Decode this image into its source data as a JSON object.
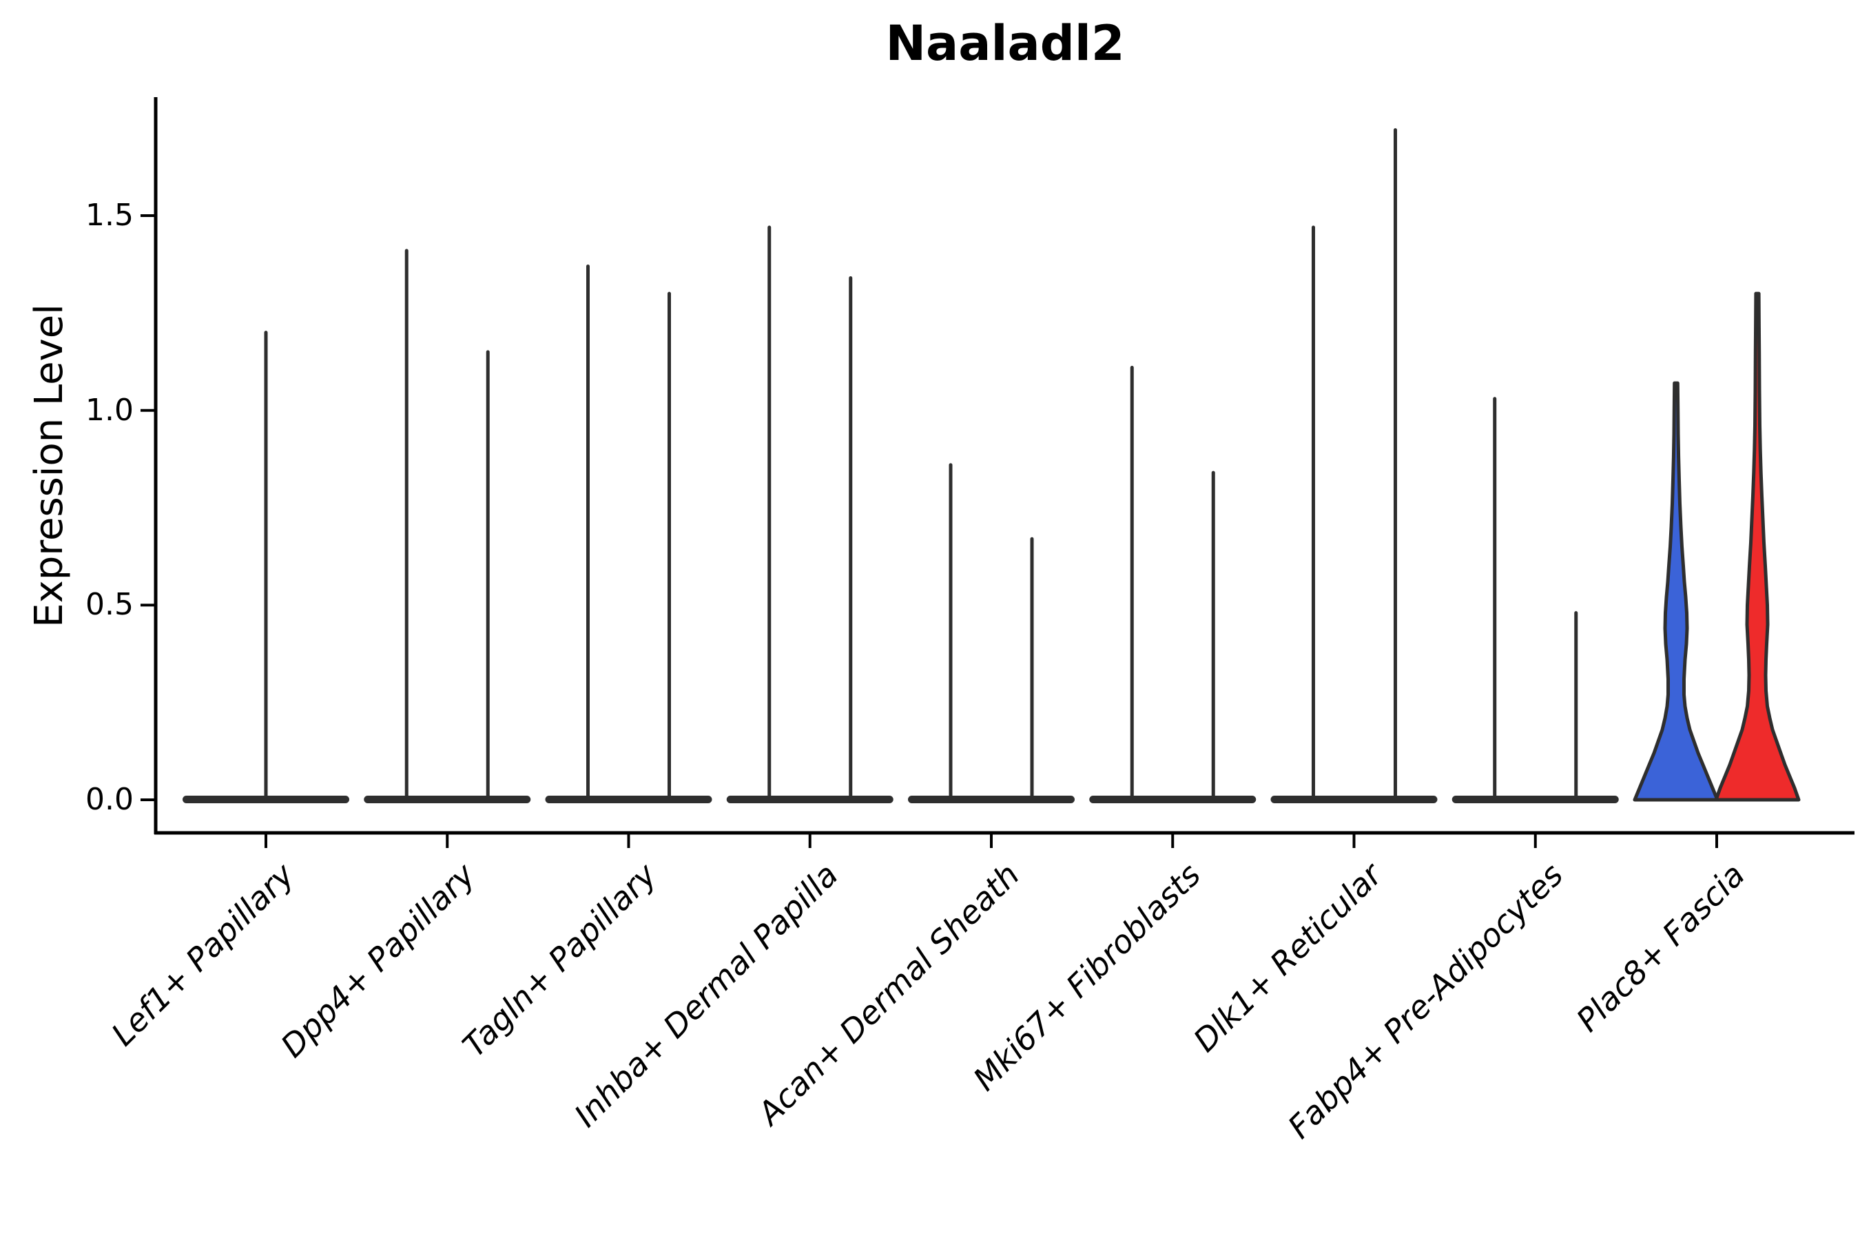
{
  "chart_data": {
    "type": "violin",
    "title": "Naaladl2",
    "xlabel": "",
    "ylabel": "Expression Level",
    "ylim": [
      0,
      1.78
    ],
    "grid": false,
    "legend": "none",
    "yticks": [
      0.0,
      0.5,
      1.0,
      1.5
    ],
    "ytick_labels": [
      "0.0",
      "0.5",
      "1.0",
      "1.5"
    ],
    "categories": [
      "Lef1+ Papillary",
      "Dpp4+ Papillary",
      "Tagln+ Papillary",
      "Inhba+ Dermal Papilla",
      "Acan+ Dermal Sheath",
      "Mki67+ Fibroblasts",
      "Dlk1+ Reticular",
      "Fabp4+ Pre-Adipocytes",
      "Plac8+ Fascia"
    ],
    "violins": [
      {
        "category": "Lef1+ Papillary",
        "base": true,
        "parts": [
          {
            "kind": "spike",
            "dx": 0,
            "max": 1.2
          }
        ]
      },
      {
        "category": "Dpp4+ Papillary",
        "base": true,
        "parts": [
          {
            "kind": "spike",
            "dx": -59,
            "max": 1.41
          },
          {
            "kind": "spike",
            "dx": 59,
            "max": 1.15
          }
        ]
      },
      {
        "category": "Tagln+ Papillary",
        "base": true,
        "parts": [
          {
            "kind": "spike",
            "dx": -59,
            "max": 1.37
          },
          {
            "kind": "spike",
            "dx": 59,
            "max": 1.3
          }
        ]
      },
      {
        "category": "Inhba+ Dermal Papilla",
        "base": true,
        "parts": [
          {
            "kind": "spike",
            "dx": -59,
            "max": 1.47
          },
          {
            "kind": "spike",
            "dx": 59,
            "max": 1.34
          }
        ]
      },
      {
        "category": "Acan+ Dermal Sheath",
        "base": true,
        "parts": [
          {
            "kind": "spike",
            "dx": -59,
            "max": 0.86
          },
          {
            "kind": "spike",
            "dx": 59,
            "max": 0.67
          }
        ]
      },
      {
        "category": "Mki67+ Fibroblasts",
        "base": true,
        "parts": [
          {
            "kind": "spike",
            "dx": -59,
            "max": 1.11
          },
          {
            "kind": "spike",
            "dx": 59,
            "max": 0.84
          }
        ]
      },
      {
        "category": "Dlk1+ Reticular",
        "base": true,
        "parts": [
          {
            "kind": "spike",
            "dx": -59,
            "max": 1.47
          },
          {
            "kind": "spike",
            "dx": 60,
            "max": 1.72
          }
        ]
      },
      {
        "category": "Fabp4+ Pre-Adipocytes",
        "base": true,
        "parts": [
          {
            "kind": "spike",
            "dx": -59,
            "max": 1.03
          },
          {
            "kind": "spike",
            "dx": 59,
            "max": 0.48
          }
        ]
      },
      {
        "category": "Plac8+ Fascia",
        "base": false,
        "parts": [
          {
            "kind": "density",
            "dx": -59,
            "max": 1.07,
            "fill": "#3B63D8",
            "group": "blue-violin",
            "profile": [
              [
                0,
                60
              ],
              [
                0.03,
                53
              ],
              [
                0.06,
                46
              ],
              [
                0.09,
                39
              ],
              [
                0.12,
                32
              ],
              [
                0.15,
                26
              ],
              [
                0.18,
                20
              ],
              [
                0.21,
                16
              ],
              [
                0.24,
                13
              ],
              [
                0.27,
                11.5
              ],
              [
                0.31,
                11.5
              ],
              [
                0.36,
                13
              ],
              [
                0.4,
                15
              ],
              [
                0.44,
                16
              ],
              [
                0.48,
                15.5
              ],
              [
                0.52,
                14
              ],
              [
                0.56,
                12
              ],
              [
                0.6,
                10.5
              ],
              [
                0.65,
                8.5
              ],
              [
                0.7,
                7
              ],
              [
                0.76,
                5.5
              ],
              [
                0.82,
                4.5
              ],
              [
                0.88,
                3.6
              ],
              [
                0.94,
                3
              ],
              [
                1.0,
                2.7
              ],
              [
                1.07,
                2.3
              ]
            ]
          },
          {
            "kind": "density",
            "dx": 59,
            "max": 1.3,
            "fill": "#EE2B2B",
            "group": "red-violin",
            "profile": [
              [
                0,
                60
              ],
              [
                0.03,
                54
              ],
              [
                0.06,
                47
              ],
              [
                0.09,
                40
              ],
              [
                0.12,
                34
              ],
              [
                0.15,
                28
              ],
              [
                0.18,
                22
              ],
              [
                0.21,
                18
              ],
              [
                0.24,
                14.5
              ],
              [
                0.28,
                12.5
              ],
              [
                0.32,
                12
              ],
              [
                0.36,
                12.5
              ],
              [
                0.4,
                13.5
              ],
              [
                0.45,
                15
              ],
              [
                0.5,
                14.5
              ],
              [
                0.55,
                13
              ],
              [
                0.6,
                11.5
              ],
              [
                0.66,
                9.5
              ],
              [
                0.72,
                8
              ],
              [
                0.78,
                6.5
              ],
              [
                0.84,
                5.2
              ],
              [
                0.9,
                4.2
              ],
              [
                0.96,
                3.5
              ],
              [
                1.05,
                3
              ],
              [
                1.15,
                2.7
              ],
              [
                1.22,
                2.4
              ],
              [
                1.3,
                2.1
              ]
            ]
          }
        ]
      }
    ],
    "style": {
      "outline_color": "#2E2E2E",
      "axis_color": "#000000",
      "blue_fill": "#3B63D8",
      "red_fill": "#EE2B2B",
      "base_halfwidth": 120,
      "spike_width": 5
    }
  }
}
